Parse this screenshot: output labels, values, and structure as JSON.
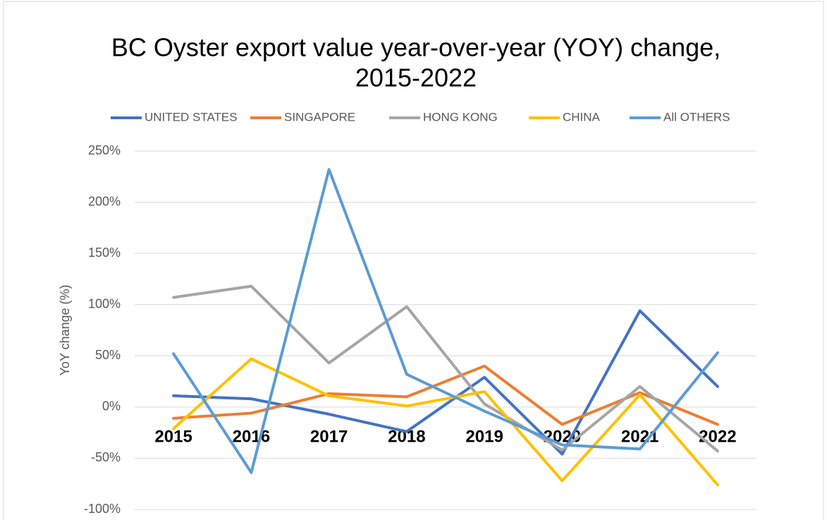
{
  "chart_data": {
    "type": "line",
    "title": "BC Oyster export value year-over-year (YOY) change,",
    "subtitle": "2015-2022",
    "y_label": "YoY change (%)",
    "categories": [
      "2015",
      "2016",
      "2017",
      "2018",
      "2019",
      "2020",
      "2021",
      "2022"
    ],
    "series": [
      {
        "name": "UNITED STATES",
        "color": "#4472c4",
        "values": [
          11,
          8,
          -7,
          -24,
          29,
          -46,
          94,
          20
        ]
      },
      {
        "name": "SINGAPORE",
        "color": "#ed7d31",
        "values": [
          -11,
          -6,
          13,
          10,
          40,
          -17,
          14,
          -17
        ]
      },
      {
        "name": "HONG KONG",
        "color": "#a5a5a5",
        "values": [
          107,
          118,
          43,
          98,
          3,
          -42,
          20,
          -43
        ]
      },
      {
        "name": "CHINA",
        "color": "#ffc000",
        "values": [
          -21,
          47,
          11,
          1,
          15,
          -72,
          12,
          -76
        ]
      },
      {
        "name": "All OTHERS",
        "color": "#5b9bd5",
        "values": [
          52,
          -64,
          232,
          32,
          -4,
          -37,
          -41,
          53
        ]
      }
    ],
    "ylim": [
      -100,
      250
    ],
    "yticks": [
      {
        "value": -100,
        "label": "-100%"
      },
      {
        "value": -50,
        "label": "-50%"
      },
      {
        "value": 0,
        "label": "0%"
      },
      {
        "value": 50,
        "label": "50%"
      },
      {
        "value": 100,
        "label": "100%"
      },
      {
        "value": 150,
        "label": "150%"
      },
      {
        "value": 200,
        "label": "200%"
      },
      {
        "value": 250,
        "label": "250%"
      }
    ],
    "grid": true,
    "legend": "top"
  }
}
